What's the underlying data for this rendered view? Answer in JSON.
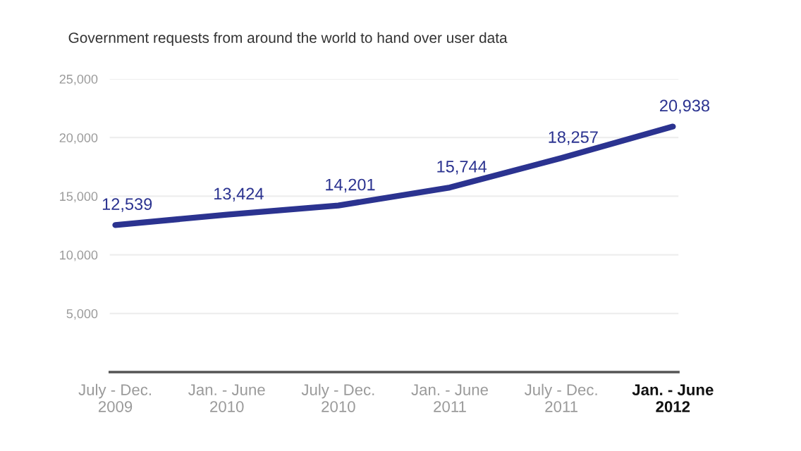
{
  "chart_data": {
    "type": "line",
    "title": "Government requests from around the world to hand over user data",
    "categories": [
      "July - Dec.\n2009",
      "Jan. - June\n2010",
      "July - Dec.\n2010",
      "Jan. - June\n2011",
      "July - Dec.\n2011",
      "Jan. - June\n2012"
    ],
    "series": [
      {
        "color": "#2b3390",
        "values": [
          12539,
          13424,
          14201,
          15744,
          18257,
          20938
        ],
        "value_labels": [
          "12,539",
          "13,424",
          "14,201",
          "15,744",
          "18,257",
          "20,938"
        ]
      }
    ],
    "ylim": [
      0,
      25000
    ],
    "yticks": [
      {
        "value": 0,
        "label": null
      },
      {
        "value": 5000,
        "label": "5,000"
      },
      {
        "value": 10000,
        "label": "10,000"
      },
      {
        "value": 15000,
        "label": "15,000"
      },
      {
        "value": 20000,
        "label": "20,000"
      },
      {
        "value": 25000,
        "label": "25,000"
      }
    ],
    "grid": "y",
    "marker": "none",
    "line_style": "solid",
    "legend": false
  }
}
